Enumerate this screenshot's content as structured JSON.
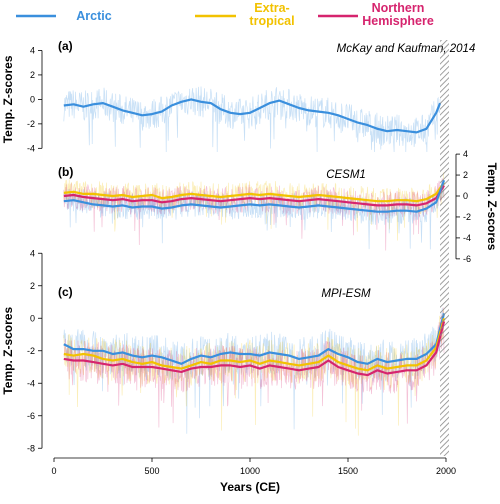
{
  "legend": [
    {
      "label_lines": [
        "Arctic"
      ],
      "color": "#3a8fdd"
    },
    {
      "label_lines": [
        "Extra-",
        "tropical"
      ],
      "color": "#f2c200"
    },
    {
      "label_lines": [
        "Northern",
        "Hemisphere"
      ],
      "color": "#d6246e"
    }
  ],
  "chart_data": [
    {
      "type": "line",
      "panel_letter": "(a)",
      "source": "McKay and Kaufman, 2014",
      "ylabel": "Temp. Z-scores",
      "yaxis_side": "left",
      "ylim": [
        -4.3,
        4.2
      ],
      "yticks": [
        -4,
        -2,
        0,
        2,
        4
      ],
      "xlim": [
        0,
        2000
      ],
      "series": [
        {
          "name": "Arctic",
          "color": "#3a8fdd",
          "x": [
            50,
            100,
            150,
            200,
            250,
            300,
            350,
            400,
            450,
            500,
            550,
            600,
            650,
            700,
            750,
            800,
            850,
            900,
            950,
            1000,
            1050,
            1100,
            1150,
            1200,
            1250,
            1300,
            1350,
            1400,
            1450,
            1500,
            1550,
            1600,
            1650,
            1700,
            1750,
            1800,
            1850,
            1900,
            1950,
            1970
          ],
          "y": [
            -0.5,
            -0.4,
            -0.6,
            -0.4,
            -0.3,
            -0.6,
            -0.9,
            -1.1,
            -1.3,
            -1.2,
            -1.0,
            -0.5,
            -0.2,
            0.0,
            -0.2,
            -0.3,
            -0.8,
            -1.1,
            -1.2,
            -1.1,
            -0.7,
            -0.3,
            -0.1,
            -0.4,
            -0.7,
            -0.9,
            -1.0,
            -1.1,
            -1.3,
            -1.6,
            -1.9,
            -2.1,
            -2.4,
            -2.6,
            -2.5,
            -2.6,
            -2.7,
            -2.4,
            -1.1,
            -0.3
          ]
        }
      ]
    },
    {
      "type": "line",
      "panel_letter": "(b)",
      "source": "CESM1",
      "ylabel": "Temp. Z-scores",
      "yaxis_side": "right",
      "ylim": [
        -6.3,
        4.2
      ],
      "yticks": [
        -6,
        -4,
        -2,
        0,
        2,
        4
      ],
      "xlim": [
        0,
        2000
      ],
      "series": [
        {
          "name": "Extra-tropical",
          "color": "#f2c200",
          "x": [
            50,
            100,
            150,
            200,
            250,
            300,
            350,
            400,
            450,
            500,
            550,
            600,
            650,
            700,
            750,
            800,
            850,
            900,
            950,
            1000,
            1050,
            1100,
            1150,
            1200,
            1250,
            1300,
            1350,
            1400,
            1450,
            1500,
            1550,
            1600,
            1650,
            1700,
            1750,
            1800,
            1850,
            1900,
            1950,
            1990
          ],
          "y": [
            0.3,
            0.4,
            0.2,
            0.2,
            0.1,
            0.0,
            0.1,
            -0.1,
            0.0,
            0.1,
            -0.2,
            -0.1,
            0.1,
            0.2,
            0.1,
            0.0,
            -0.1,
            0.0,
            0.1,
            0.2,
            0.1,
            0.2,
            0.1,
            0.0,
            -0.1,
            0.0,
            0.1,
            0.0,
            -0.1,
            -0.2,
            -0.3,
            -0.4,
            -0.5,
            -0.5,
            -0.4,
            -0.4,
            -0.5,
            -0.3,
            0.2,
            1.3
          ]
        },
        {
          "name": "Northern Hemisphere",
          "color": "#d6246e",
          "x": [
            50,
            100,
            150,
            200,
            250,
            300,
            350,
            400,
            450,
            500,
            550,
            600,
            650,
            700,
            750,
            800,
            850,
            900,
            950,
            1000,
            1050,
            1100,
            1150,
            1200,
            1250,
            1300,
            1350,
            1400,
            1450,
            1500,
            1550,
            1600,
            1650,
            1700,
            1750,
            1800,
            1850,
            1900,
            1950,
            1990
          ],
          "y": [
            0.0,
            0.1,
            -0.1,
            -0.2,
            -0.3,
            -0.4,
            -0.3,
            -0.5,
            -0.4,
            -0.4,
            -0.6,
            -0.5,
            -0.3,
            -0.2,
            -0.3,
            -0.4,
            -0.5,
            -0.4,
            -0.3,
            -0.2,
            -0.3,
            -0.2,
            -0.3,
            -0.4,
            -0.5,
            -0.4,
            -0.3,
            -0.4,
            -0.5,
            -0.6,
            -0.7,
            -0.8,
            -0.9,
            -0.9,
            -0.8,
            -0.8,
            -0.9,
            -0.7,
            -0.2,
            1.0
          ]
        },
        {
          "name": "Arctic",
          "color": "#3a8fdd",
          "x": [
            50,
            100,
            150,
            200,
            250,
            300,
            350,
            400,
            450,
            500,
            550,
            600,
            650,
            700,
            750,
            800,
            850,
            900,
            950,
            1000,
            1050,
            1100,
            1150,
            1200,
            1250,
            1300,
            1350,
            1400,
            1450,
            1500,
            1550,
            1600,
            1650,
            1700,
            1750,
            1800,
            1850,
            1900,
            1950,
            1990
          ],
          "y": [
            -0.5,
            -0.4,
            -0.6,
            -0.8,
            -0.9,
            -1.0,
            -0.9,
            -1.1,
            -1.0,
            -1.0,
            -1.2,
            -1.1,
            -0.9,
            -0.8,
            -0.9,
            -1.0,
            -1.1,
            -1.0,
            -0.9,
            -0.8,
            -0.9,
            -0.8,
            -0.9,
            -1.0,
            -1.1,
            -1.0,
            -0.9,
            -1.0,
            -1.1,
            -1.2,
            -1.3,
            -1.4,
            -1.5,
            -1.5,
            -1.4,
            -1.4,
            -1.5,
            -1.2,
            -0.6,
            1.5
          ]
        }
      ]
    },
    {
      "type": "line",
      "panel_letter": "(c)",
      "source": "MPI-ESM",
      "ylabel": "Temp. Z-scores",
      "yaxis_side": "left",
      "ylim": [
        -8.6,
        4.2
      ],
      "yticks": [
        -8,
        -6,
        -4,
        -2,
        0,
        2,
        4
      ],
      "xlim": [
        0,
        2000
      ],
      "series": [
        {
          "name": "Arctic",
          "color": "#3a8fdd",
          "x": [
            50,
            100,
            150,
            200,
            250,
            300,
            350,
            400,
            450,
            500,
            550,
            600,
            650,
            700,
            750,
            800,
            850,
            900,
            950,
            1000,
            1050,
            1100,
            1150,
            1200,
            1250,
            1300,
            1350,
            1400,
            1450,
            1500,
            1550,
            1600,
            1650,
            1700,
            1750,
            1800,
            1850,
            1900,
            1950,
            1990
          ],
          "y": [
            -1.6,
            -1.9,
            -1.9,
            -2.0,
            -2.0,
            -2.2,
            -2.1,
            -2.3,
            -2.4,
            -2.3,
            -2.4,
            -2.6,
            -2.8,
            -2.5,
            -2.3,
            -2.4,
            -2.2,
            -2.1,
            -2.2,
            -2.2,
            -2.3,
            -2.1,
            -2.2,
            -2.3,
            -2.5,
            -2.4,
            -2.3,
            -1.9,
            -2.2,
            -2.4,
            -2.7,
            -2.8,
            -2.5,
            -2.7,
            -2.6,
            -2.5,
            -2.5,
            -2.2,
            -1.6,
            0.3
          ]
        },
        {
          "name": "Extra-tropical",
          "color": "#f2c200",
          "x": [
            50,
            100,
            150,
            200,
            250,
            300,
            350,
            400,
            450,
            500,
            550,
            600,
            650,
            700,
            750,
            800,
            850,
            900,
            950,
            1000,
            1050,
            1100,
            1150,
            1200,
            1250,
            1300,
            1350,
            1400,
            1450,
            1500,
            1550,
            1600,
            1650,
            1700,
            1750,
            1800,
            1850,
            1900,
            1950,
            1990
          ],
          "y": [
            -2.2,
            -2.3,
            -2.2,
            -2.3,
            -2.5,
            -2.6,
            -2.5,
            -2.7,
            -2.8,
            -2.7,
            -2.9,
            -3.0,
            -3.1,
            -2.9,
            -2.7,
            -2.8,
            -2.6,
            -2.6,
            -2.7,
            -2.6,
            -2.8,
            -2.6,
            -2.7,
            -2.8,
            -2.9,
            -2.8,
            -2.7,
            -2.3,
            -2.7,
            -2.9,
            -3.1,
            -3.2,
            -2.9,
            -3.1,
            -3.0,
            -2.9,
            -2.9,
            -2.6,
            -1.8,
            0.0
          ]
        },
        {
          "name": "Northern Hemisphere",
          "color": "#d6246e",
          "x": [
            50,
            100,
            150,
            200,
            250,
            300,
            350,
            400,
            450,
            500,
            550,
            600,
            650,
            700,
            750,
            800,
            850,
            900,
            950,
            1000,
            1050,
            1100,
            1150,
            1200,
            1250,
            1300,
            1350,
            1400,
            1450,
            1500,
            1550,
            1600,
            1650,
            1700,
            1750,
            1800,
            1850,
            1900,
            1950,
            1990
          ],
          "y": [
            -2.5,
            -2.6,
            -2.6,
            -2.7,
            -2.8,
            -2.9,
            -2.8,
            -3.0,
            -3.0,
            -3.0,
            -3.1,
            -3.2,
            -3.3,
            -3.1,
            -3.0,
            -3.0,
            -2.9,
            -2.9,
            -3.0,
            -2.9,
            -3.1,
            -2.9,
            -3.0,
            -3.1,
            -3.2,
            -3.1,
            -3.0,
            -2.6,
            -3.0,
            -3.2,
            -3.4,
            -3.5,
            -3.2,
            -3.4,
            -3.3,
            -3.2,
            -3.2,
            -2.9,
            -2.1,
            -0.2
          ]
        }
      ]
    }
  ],
  "xaxis": {
    "label": "Years (CE)",
    "ticks": [
      0,
      500,
      1000,
      1500,
      2000
    ]
  }
}
